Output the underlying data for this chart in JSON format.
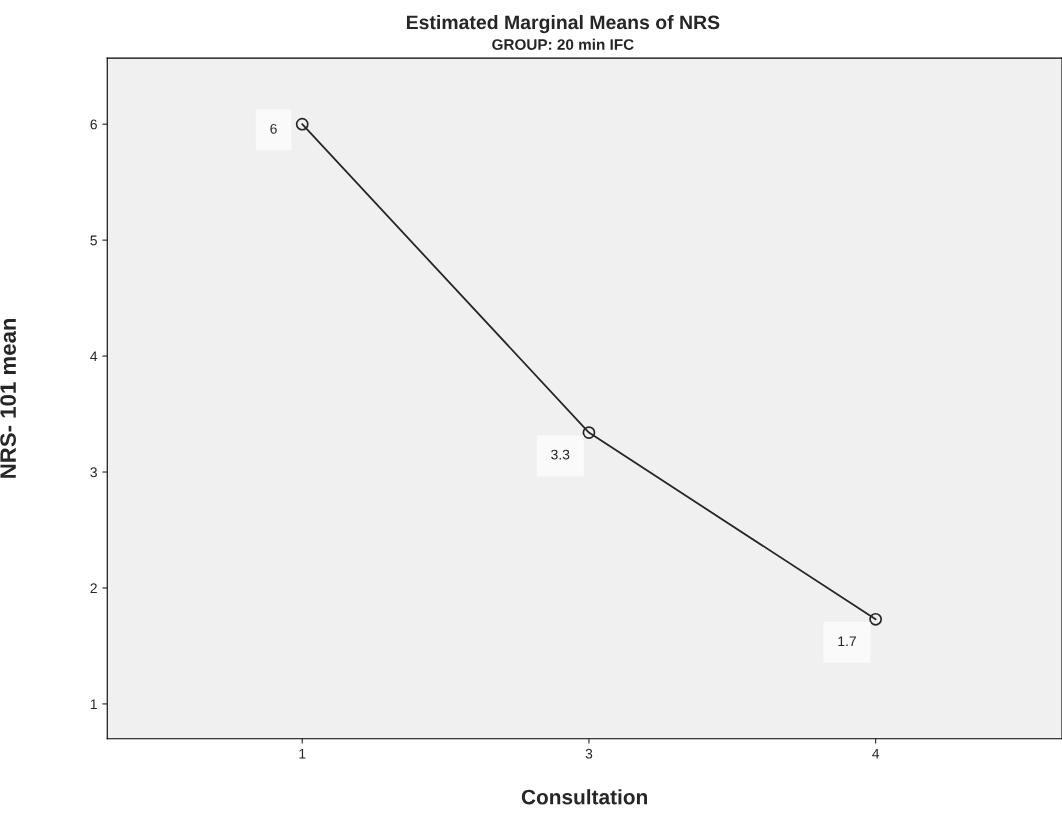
{
  "chart_data": {
    "type": "line",
    "title": "Estimated Marginal Means of NRS",
    "subtitle": "GROUP: 20 min IFC",
    "xlabel": "Consultation",
    "ylabel": "NRS- 101 mean",
    "categories": [
      "1",
      "3",
      "4"
    ],
    "series": [
      {
        "color": "#262626",
        "values": [
          6,
          3.34,
          1.73
        ],
        "value_labels": [
          "6",
          "3.3",
          "1.7"
        ]
      }
    ],
    "ylim": [
      0.7,
      6.57
    ],
    "yticks": [
      1,
      2,
      3,
      4,
      5,
      6
    ],
    "grid": false,
    "legend": false,
    "marker": "circle",
    "line_style": "solid"
  }
}
